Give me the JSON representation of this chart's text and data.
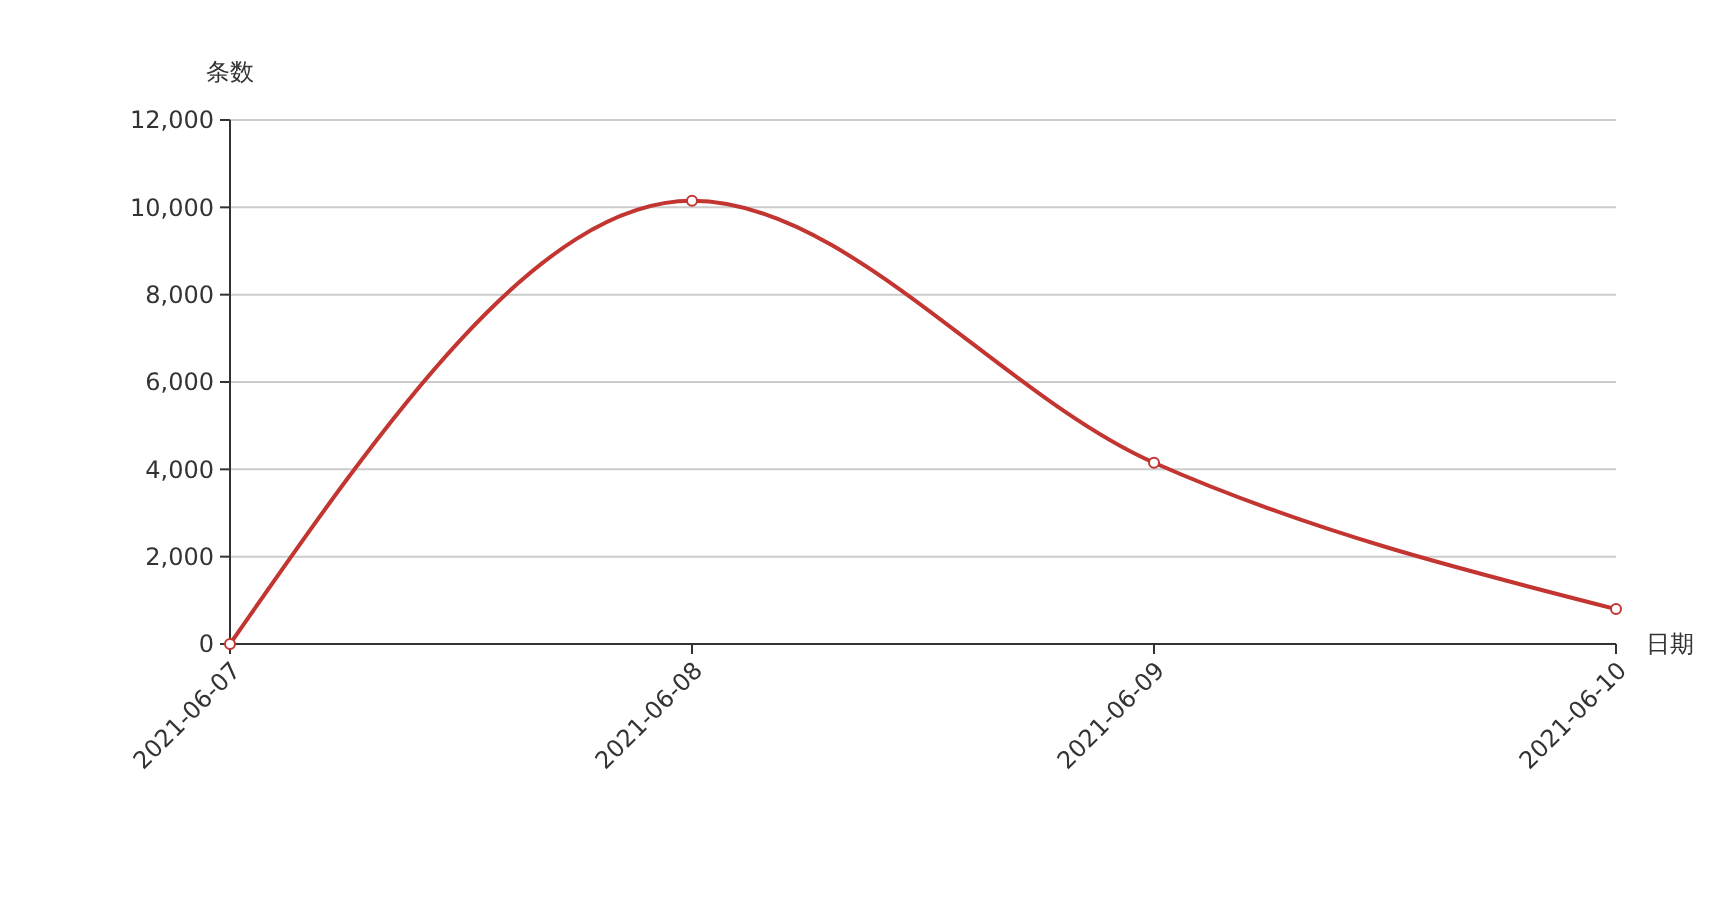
{
  "chart_data": {
    "type": "line",
    "xlabel": "日期",
    "ylabel": "条数",
    "categories": [
      "2021-06-07",
      "2021-06-08",
      "2021-06-09",
      "2021-06-10"
    ],
    "series": [
      {
        "color": "#c23531",
        "values": [
          0,
          10150,
          4150,
          800
        ]
      }
    ],
    "ylim": [
      0,
      12000
    ],
    "yticks": [
      {
        "value": 0,
        "label": "0"
      },
      {
        "value": 2000,
        "label": "2,000"
      },
      {
        "value": 4000,
        "label": "4,000"
      },
      {
        "value": 6000,
        "label": "6,000"
      },
      {
        "value": 8000,
        "label": "8,000"
      },
      {
        "value": 10000,
        "label": "10,000"
      },
      {
        "value": 12000,
        "label": "12,000"
      }
    ],
    "grid": "y",
    "marker": "circle",
    "line_style": "solid"
  }
}
